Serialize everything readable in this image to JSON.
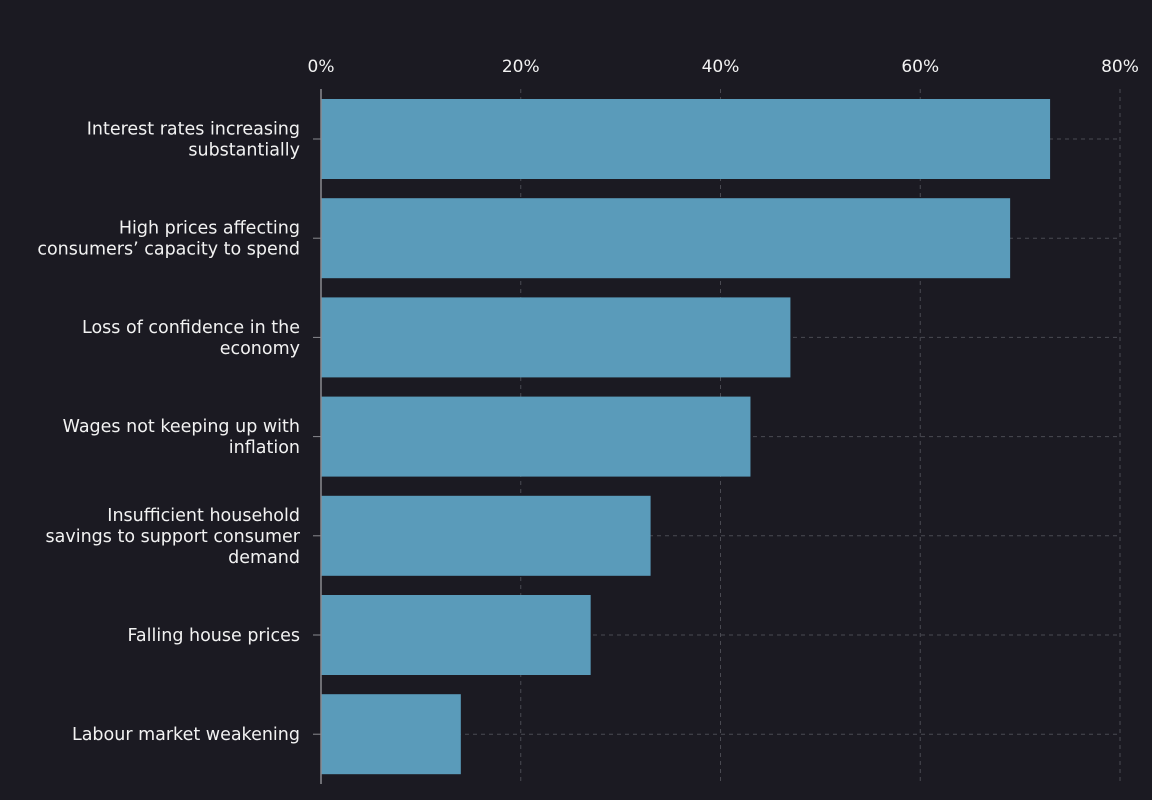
{
  "colors": {
    "background": "#1b1a22",
    "bar": "#5a9bba",
    "text": "#f2f2f2",
    "grid": "#4a4a52"
  },
  "chart_data": {
    "type": "bar",
    "orientation": "horizontal",
    "title": "",
    "xlabel": "",
    "ylabel": "",
    "xlim": [
      0,
      80
    ],
    "x_ticks": [
      "0%",
      "20%",
      "40%",
      "60%",
      "80%"
    ],
    "x_tick_values": [
      0,
      20,
      40,
      60,
      80
    ],
    "grid": true,
    "categories": [
      [
        "Interest rates increasing",
        "substantially"
      ],
      [
        "High prices affecting",
        "consumers’ capacity to spend"
      ],
      [
        "Loss of confidence in the",
        "economy"
      ],
      [
        "Wages not keeping up with",
        "inflation"
      ],
      [
        "Insufficient household",
        "savings to support consumer",
        "demand"
      ],
      [
        "Falling house prices"
      ],
      [
        "Labour market weakening"
      ]
    ],
    "values": [
      73,
      69,
      47,
      43,
      33,
      27,
      14
    ]
  }
}
